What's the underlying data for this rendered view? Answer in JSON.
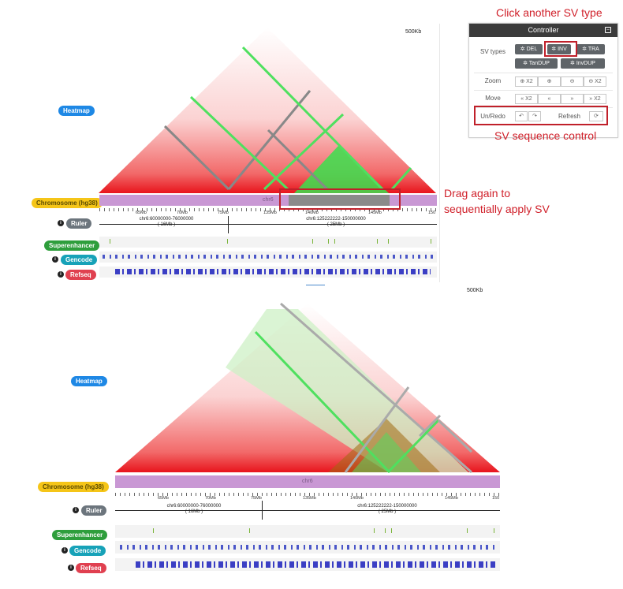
{
  "top_panel": {
    "kb_label": "500Kb",
    "heatmap_label": "Heatmap",
    "chromosome_label": "Chromosome (hg38)",
    "chrom_name": "chr6",
    "ruler_label": "Ruler",
    "superenhancer_label": "Superenhancer",
    "gencode_label": "Gencode",
    "refseq_label": "Refseq",
    "ticks": [
      "65Mb",
      "70Mb",
      "75Mb",
      "135Mb",
      "140Mb",
      "145Mb",
      "150"
    ],
    "range1_line1": "chr6:60000000-76000000",
    "range1_line2": "( 16Mb )",
    "range2_line1": "chr6:125222222-150000000",
    "range2_line2": "( 25Mb )"
  },
  "bottom_panel": {
    "kb_label": "500Kb",
    "heatmap_label": "Heatmap",
    "chromosome_label": "Chromosome (hg38)",
    "chrom_name": "chr6",
    "ruler_label": "Ruler",
    "superenhancer_label": "Superenhancer",
    "gencode_label": "Gencode",
    "refseq_label": "Refseq",
    "ticks": [
      "65Mb",
      "70Mb",
      "75Mb",
      "135Mb",
      "140Mb",
      "145Mb",
      "150"
    ],
    "range1_line1": "chr6:60000000-76000000",
    "range1_line2": "( 16Mb )",
    "range2_line1": "chr6:125222222-150000000",
    "range2_line2": "( 25Mb )"
  },
  "controller": {
    "title": "Controller",
    "sv_types_label": "SV types",
    "zoom_label": "Zoom",
    "move_label": "Move",
    "unredo_label": "Un/Redo",
    "refresh_label": "Refresh",
    "sv_buttons": [
      "DEL",
      "INV",
      "TRA",
      "TanDUP",
      "InvDUP"
    ],
    "zoom_buttons": [
      "X2",
      "",
      "",
      "X2"
    ],
    "move_buttons": [
      "X2",
      "",
      "",
      "X2"
    ]
  },
  "annotations": {
    "click_sv": "Click another SV type",
    "sv_sequence": "SV sequence control",
    "drag_again_line1": "Drag again to",
    "drag_again_line2": "sequentially apply SV"
  },
  "colors": {
    "heat_red": "#e8141c",
    "inv_green": "#2fd84a",
    "chrom_purple": "#c998d4",
    "controller_header": "#3b3b3b",
    "callout_red": "#d0202a",
    "arrow_blue": "#4a89cc"
  }
}
